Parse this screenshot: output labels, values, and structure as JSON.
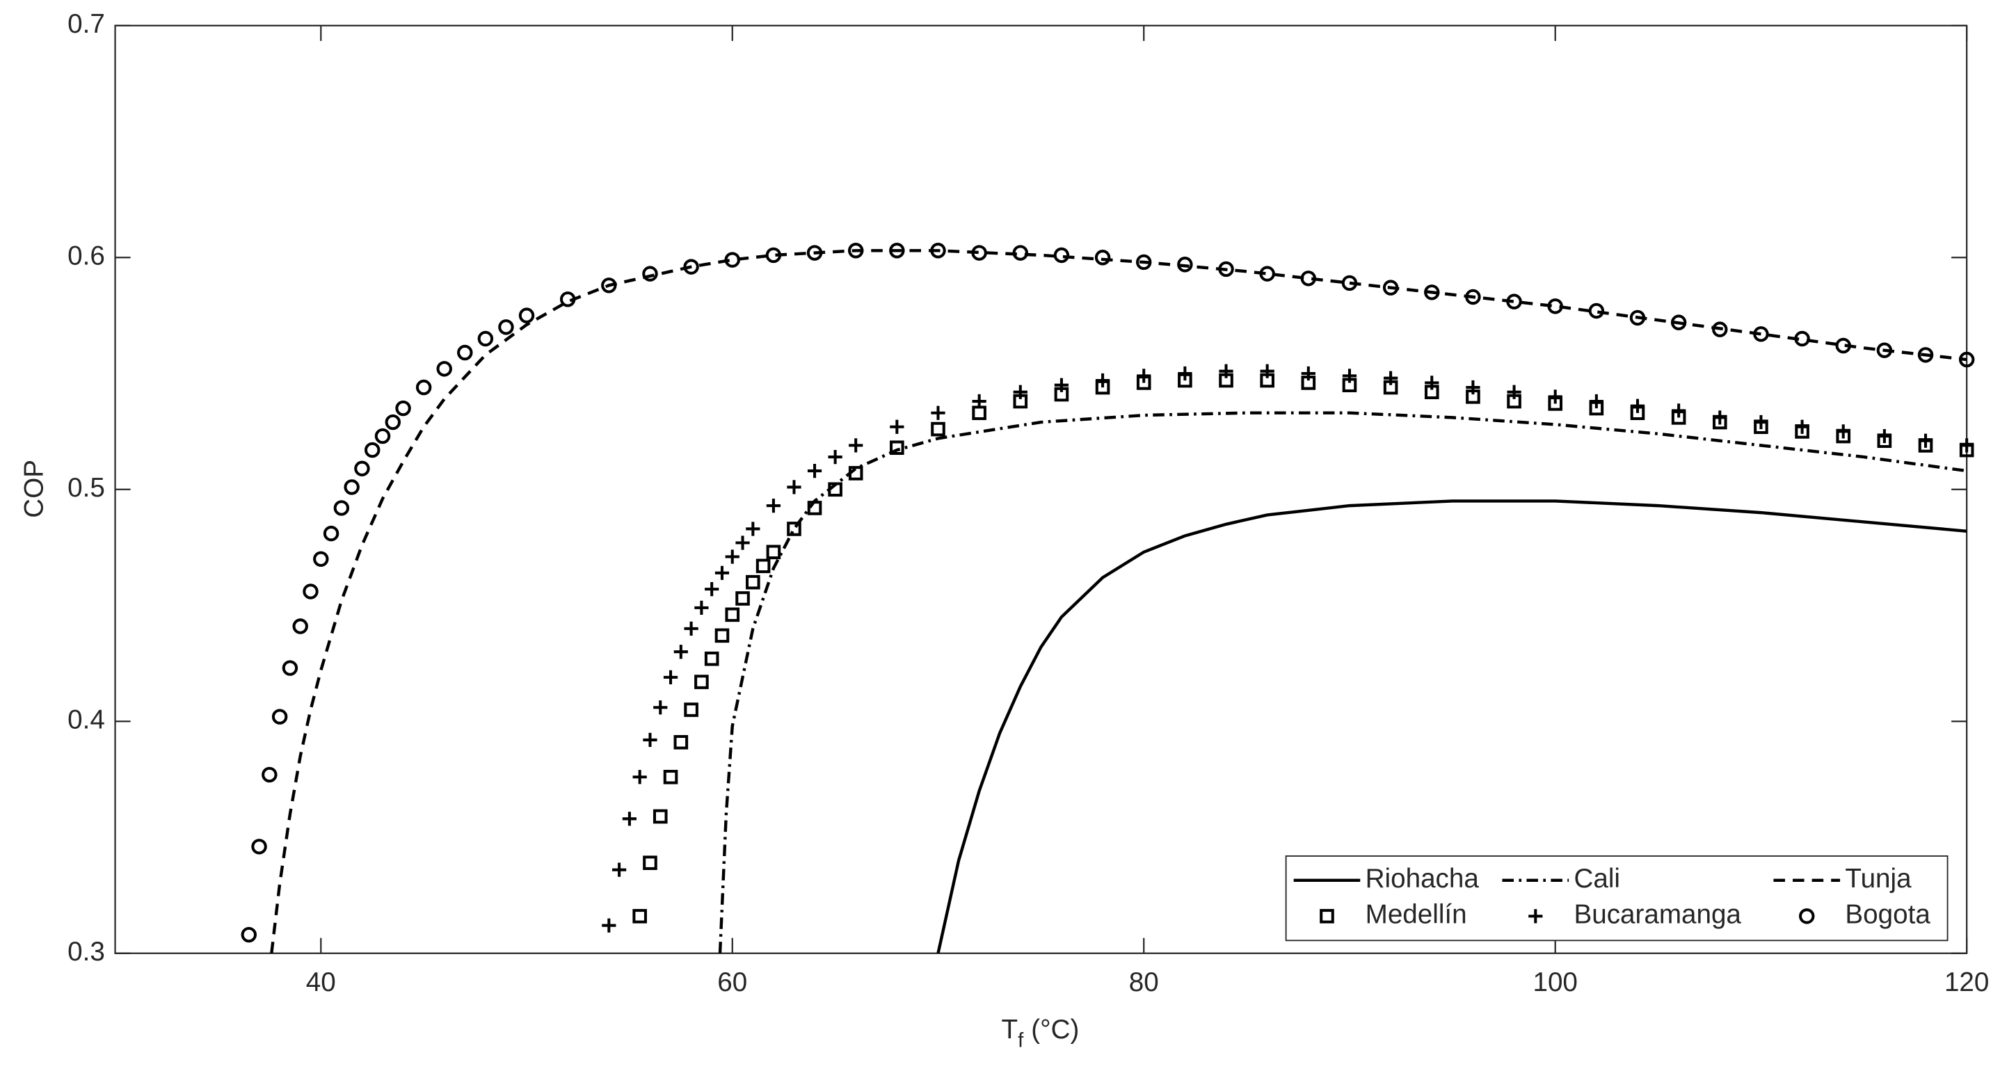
{
  "chart_data": {
    "type": "line",
    "xlabel": {
      "symbol": "T",
      "subscript": "f",
      "unit": "(°C)"
    },
    "ylabel": "COP",
    "xlim": [
      30,
      120
    ],
    "xticks": [
      40,
      60,
      80,
      100,
      120
    ],
    "ylim": [
      0.3,
      0.7
    ],
    "yticks": [
      0.3,
      0.4,
      0.5,
      0.6,
      0.7
    ],
    "legend_position": "lower right",
    "legend_columns": 3,
    "series": [
      {
        "name": "Riohacha",
        "color": "#000000",
        "style": "solid",
        "marker": "none",
        "x": [
          70,
          71,
          72,
          73,
          74,
          75,
          76,
          78,
          80,
          82,
          84,
          86,
          88,
          90,
          95,
          100,
          105,
          110,
          115,
          120
        ],
        "values": [
          0.3,
          0.34,
          0.37,
          0.395,
          0.415,
          0.432,
          0.445,
          0.462,
          0.473,
          0.48,
          0.485,
          0.489,
          0.491,
          0.493,
          0.495,
          0.495,
          0.493,
          0.49,
          0.486,
          0.482
        ]
      },
      {
        "name": "Cali",
        "color": "#000000",
        "style": "dashdot",
        "marker": "none",
        "x": [
          59.4,
          59.7,
          60,
          61,
          62,
          63,
          64,
          66,
          68,
          70,
          75,
          80,
          85,
          90,
          95,
          100,
          105,
          110,
          115,
          120
        ],
        "values": [
          0.3,
          0.36,
          0.398,
          0.44,
          0.466,
          0.483,
          0.495,
          0.509,
          0.517,
          0.522,
          0.529,
          0.532,
          0.533,
          0.533,
          0.531,
          0.528,
          0.524,
          0.519,
          0.514,
          0.508
        ]
      },
      {
        "name": "Tunja",
        "color": "#000000",
        "style": "dashed",
        "marker": "none",
        "x": [
          37.6,
          38,
          38.5,
          39,
          39.5,
          40,
          41,
          42,
          43,
          44,
          45,
          46,
          48,
          50,
          52,
          54,
          56,
          58,
          60,
          62,
          64,
          66,
          68,
          70,
          75,
          80,
          85,
          90,
          95,
          100,
          105,
          110,
          115,
          120
        ],
        "values": [
          0.3,
          0.33,
          0.36,
          0.385,
          0.405,
          0.422,
          0.452,
          0.476,
          0.496,
          0.512,
          0.527,
          0.539,
          0.558,
          0.571,
          0.581,
          0.588,
          0.592,
          0.596,
          0.599,
          0.601,
          0.602,
          0.603,
          0.603,
          0.603,
          0.601,
          0.598,
          0.594,
          0.589,
          0.584,
          0.579,
          0.573,
          0.567,
          0.561,
          0.556
        ]
      },
      {
        "name": "Medellín",
        "color": "#000000",
        "style": "none",
        "marker": "square",
        "x": [
          55.5,
          56,
          56.5,
          57,
          57.5,
          58,
          58.5,
          59,
          59.5,
          60,
          60.5,
          61,
          61.5,
          62,
          63,
          64,
          65,
          66,
          68,
          70,
          72,
          74,
          76,
          78,
          80,
          82,
          84,
          86,
          88,
          90,
          92,
          94,
          96,
          98,
          100,
          102,
          104,
          106,
          108,
          110,
          112,
          114,
          116,
          118,
          120
        ],
        "values": [
          0.316,
          0.339,
          0.359,
          0.376,
          0.391,
          0.405,
          0.417,
          0.427,
          0.437,
          0.446,
          0.453,
          0.46,
          0.467,
          0.473,
          0.483,
          0.492,
          0.5,
          0.507,
          0.518,
          0.526,
          0.533,
          0.538,
          0.541,
          0.544,
          0.546,
          0.547,
          0.547,
          0.547,
          0.546,
          0.545,
          0.544,
          0.542,
          0.54,
          0.538,
          0.537,
          0.535,
          0.533,
          0.531,
          0.529,
          0.527,
          0.525,
          0.523,
          0.521,
          0.519,
          0.517
        ]
      },
      {
        "name": "Bucaramanga",
        "color": "#000000",
        "style": "none",
        "marker": "plus",
        "x": [
          54,
          54.5,
          55,
          55.5,
          56,
          56.5,
          57,
          57.5,
          58,
          58.5,
          59,
          59.5,
          60,
          60.5,
          61,
          62,
          63,
          64,
          65,
          66,
          68,
          70,
          72,
          74,
          76,
          78,
          80,
          82,
          84,
          86,
          88,
          90,
          92,
          94,
          96,
          98,
          100,
          102,
          104,
          106,
          108,
          110,
          112,
          114,
          116,
          118,
          120
        ],
        "values": [
          0.312,
          0.336,
          0.358,
          0.376,
          0.392,
          0.406,
          0.419,
          0.43,
          0.44,
          0.449,
          0.457,
          0.464,
          0.471,
          0.477,
          0.483,
          0.493,
          0.501,
          0.508,
          0.514,
          0.519,
          0.527,
          0.533,
          0.538,
          0.542,
          0.545,
          0.547,
          0.549,
          0.55,
          0.551,
          0.551,
          0.55,
          0.549,
          0.548,
          0.546,
          0.544,
          0.542,
          0.54,
          0.538,
          0.536,
          0.534,
          0.531,
          0.529,
          0.527,
          0.525,
          0.523,
          0.521,
          0.519
        ]
      },
      {
        "name": "Bogota",
        "color": "#000000",
        "style": "none",
        "marker": "circle",
        "x": [
          36.5,
          37,
          37.5,
          38,
          38.5,
          39,
          39.5,
          40,
          40.5,
          41,
          41.5,
          42,
          42.5,
          43,
          43.5,
          44,
          45,
          46,
          47,
          48,
          49,
          50,
          52,
          54,
          56,
          58,
          60,
          62,
          64,
          66,
          68,
          70,
          72,
          74,
          76,
          78,
          80,
          82,
          84,
          86,
          88,
          90,
          92,
          94,
          96,
          98,
          100,
          102,
          104,
          106,
          108,
          110,
          112,
          114,
          116,
          118,
          120
        ],
        "values": [
          0.308,
          0.346,
          0.377,
          0.402,
          0.423,
          0.441,
          0.456,
          0.47,
          0.481,
          0.492,
          0.501,
          0.509,
          0.517,
          0.523,
          0.529,
          0.535,
          0.544,
          0.552,
          0.559,
          0.565,
          0.57,
          0.575,
          0.582,
          0.588,
          0.593,
          0.596,
          0.599,
          0.601,
          0.602,
          0.603,
          0.603,
          0.603,
          0.602,
          0.602,
          0.601,
          0.6,
          0.598,
          0.597,
          0.595,
          0.593,
          0.591,
          0.589,
          0.587,
          0.585,
          0.583,
          0.581,
          0.579,
          0.577,
          0.574,
          0.572,
          0.569,
          0.567,
          0.565,
          0.562,
          0.56,
          0.558,
          0.556
        ]
      }
    ]
  }
}
